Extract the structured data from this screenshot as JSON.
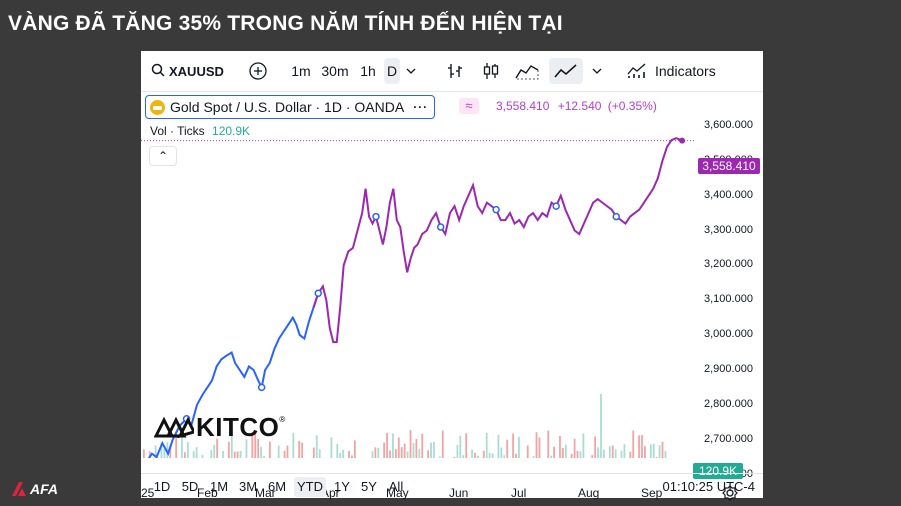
{
  "headline": "VÀNG ĐÃ TĂNG 35% TRONG NĂM TÍNH ĐẾN HIỆN TẠI",
  "toolbar": {
    "symbol": "XAUUSD",
    "intervals": [
      "1m",
      "30m",
      "1h",
      "D"
    ],
    "selected_interval": "D",
    "indicators_label": "Indicators"
  },
  "legend": {
    "title": "Gold Spot / U.S. Dollar · 1D · OANDA",
    "more": "···",
    "approx": "≈",
    "price": "3,558.410",
    "change": "+12.540",
    "change_pct": "(+0.35%)",
    "vol_label": "Vol · Ticks",
    "vol_value": "120.9K",
    "collapse": "⌃"
  },
  "price_tag": "3,558.410",
  "vol_tag": "120.9K",
  "y_axis_labels": [
    "3,600.000",
    "3,500.000",
    "3,400.000",
    "3,300.000",
    "3,200.000",
    "3,100.000",
    "3,000.000",
    "2,900.000",
    "2,800.000",
    "2,700.000",
    "2,600.000"
  ],
  "x_axis_labels": [
    "25",
    "Feb",
    "Mar",
    "Apr",
    "May",
    "Jun",
    "Jul",
    "Aug",
    "Sep"
  ],
  "ranges": [
    "1D",
    "5D",
    "1M",
    "3M",
    "6M",
    "YTD",
    "1Y",
    "5Y",
    "All"
  ],
  "selected_range": "YTD",
  "clock": "01:10:25 UTC-4",
  "watermark": "KITCO",
  "watermark_reg": "®",
  "brand": "AFA",
  "colors": {
    "line_early": "#2962ff",
    "line_late": "#9c27b0",
    "vol_up": "#f4a3a3",
    "vol_down": "#a9ddd2",
    "accent": "#2962ff"
  },
  "chart_data": {
    "type": "line",
    "title": "Gold Spot / U.S. Dollar · 1D · OANDA",
    "xlabel": "",
    "ylabel": "",
    "ylim": [
      2570,
      3640
    ],
    "x_ticks": [
      "25",
      "Feb",
      "Mar",
      "Apr",
      "May",
      "Jun",
      "Jul",
      "Aug",
      "Sep"
    ],
    "series": [
      {
        "name": "Gold Spot / U.S. Dollar",
        "points": [
          [
            0,
            2630
          ],
          [
            6,
            2660
          ],
          [
            10,
            2650
          ],
          [
            15,
            2690
          ],
          [
            20,
            2660
          ],
          [
            24,
            2700
          ],
          [
            30,
            2740
          ],
          [
            36,
            2760
          ],
          [
            40,
            2740
          ],
          [
            45,
            2800
          ],
          [
            50,
            2830
          ],
          [
            54,
            2850
          ],
          [
            58,
            2870
          ],
          [
            62,
            2910
          ],
          [
            66,
            2930
          ],
          [
            70,
            2940
          ],
          [
            75,
            2950
          ],
          [
            78,
            2920
          ],
          [
            82,
            2900
          ],
          [
            86,
            2880
          ],
          [
            90,
            2910
          ],
          [
            94,
            2900
          ],
          [
            98,
            2870
          ],
          [
            101,
            2850
          ],
          [
            104,
            2900
          ],
          [
            108,
            2920
          ],
          [
            112,
            2960
          ],
          [
            116,
            2990
          ],
          [
            120,
            3010
          ],
          [
            124,
            3030
          ],
          [
            128,
            3050
          ],
          [
            131,
            3030
          ],
          [
            134,
            3000
          ],
          [
            138,
            2990
          ],
          [
            142,
            3040
          ],
          [
            146,
            3080
          ],
          [
            150,
            3120
          ],
          [
            154,
            3140
          ],
          [
            157,
            3100
          ],
          [
            160,
            3020
          ],
          [
            163,
            2980
          ],
          [
            166,
            2980
          ],
          [
            169,
            3080
          ],
          [
            172,
            3200
          ],
          [
            176,
            3240
          ],
          [
            180,
            3250
          ],
          [
            184,
            3300
          ],
          [
            188,
            3350
          ],
          [
            191,
            3420
          ],
          [
            194,
            3340
          ],
          [
            197,
            3320
          ],
          [
            200,
            3340
          ],
          [
            203,
            3300
          ],
          [
            206,
            3260
          ],
          [
            209,
            3310
          ],
          [
            212,
            3380
          ],
          [
            215,
            3420
          ],
          [
            218,
            3330
          ],
          [
            221,
            3310
          ],
          [
            224,
            3240
          ],
          [
            227,
            3180
          ],
          [
            230,
            3220
          ],
          [
            233,
            3250
          ],
          [
            236,
            3260
          ],
          [
            240,
            3290
          ],
          [
            244,
            3300
          ],
          [
            248,
            3330
          ],
          [
            252,
            3350
          ],
          [
            256,
            3310
          ],
          [
            260,
            3290
          ],
          [
            264,
            3350
          ],
          [
            268,
            3370
          ],
          [
            272,
            3330
          ],
          [
            276,
            3370
          ],
          [
            280,
            3400
          ],
          [
            284,
            3430
          ],
          [
            288,
            3370
          ],
          [
            292,
            3350
          ],
          [
            296,
            3380
          ],
          [
            300,
            3370
          ],
          [
            304,
            3360
          ],
          [
            308,
            3330
          ],
          [
            312,
            3330
          ],
          [
            316,
            3350
          ],
          [
            320,
            3320
          ],
          [
            324,
            3330
          ],
          [
            328,
            3310
          ],
          [
            332,
            3340
          ],
          [
            336,
            3350
          ],
          [
            340,
            3330
          ],
          [
            344,
            3350
          ],
          [
            348,
            3340
          ],
          [
            352,
            3380
          ],
          [
            356,
            3370
          ],
          [
            360,
            3400
          ],
          [
            364,
            3360
          ],
          [
            368,
            3330
          ],
          [
            372,
            3300
          ],
          [
            376,
            3290
          ],
          [
            380,
            3320
          ],
          [
            384,
            3350
          ],
          [
            388,
            3380
          ],
          [
            392,
            3390
          ],
          [
            396,
            3380
          ],
          [
            400,
            3370
          ],
          [
            404,
            3360
          ],
          [
            408,
            3340
          ],
          [
            412,
            3330
          ],
          [
            416,
            3320
          ],
          [
            420,
            3340
          ],
          [
            424,
            3350
          ],
          [
            428,
            3360
          ],
          [
            432,
            3380
          ],
          [
            436,
            3400
          ],
          [
            440,
            3420
          ],
          [
            444,
            3450
          ],
          [
            448,
            3500
          ],
          [
            452,
            3540
          ],
          [
            456,
            3560
          ],
          [
            460,
            3565
          ],
          [
            465,
            3558
          ]
        ]
      }
    ],
    "volume_label": "Vol · Ticks",
    "volume_last": "120.9K"
  }
}
